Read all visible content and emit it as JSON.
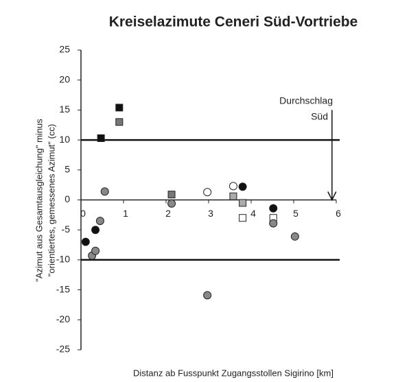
{
  "chart_data": {
    "type": "scatter",
    "title": "Kreiselazimute Ceneri Süd-Vortriebe",
    "x_label": "Distanz ab Fusspunkt Zugangsstollen Sigirino [km]",
    "y_label": [
      "\"Azimut aus Gesamtausgleichung\" minus",
      "\"orientiertes, gemessenes Azimut\" (cc)"
    ],
    "annotation": [
      "Durchschlag",
      "Süd"
    ],
    "arrow": {
      "x": 5.9,
      "y": [
        15,
        0
      ]
    },
    "hlines": [
      10,
      -10
    ],
    "xlim": [
      0,
      6
    ],
    "xticks": [
      0,
      1,
      2,
      3,
      4,
      5,
      6
    ],
    "ylim": [
      -25,
      25
    ],
    "yticks": [
      -25,
      -20,
      -15,
      -10,
      -5,
      0,
      5,
      10,
      15,
      20,
      25
    ],
    "series": [
      {
        "marker": "square",
        "color": "#111111",
        "x": [
          0.47,
          0.9
        ],
        "values": [
          10.3,
          15.4
        ]
      },
      {
        "marker": "square",
        "color": "#777777",
        "x": [
          0.9,
          2.13
        ],
        "values": [
          13.0,
          0.9
        ]
      },
      {
        "marker": "square",
        "color": "#aaaaaa",
        "x": [
          3.58,
          3.8
        ],
        "values": [
          0.6,
          -0.5
        ]
      },
      {
        "marker": "square",
        "color": "#ffffff",
        "x": [
          3.8,
          4.52
        ],
        "values": [
          -3.0,
          -3.0
        ]
      },
      {
        "marker": "circle",
        "color": "#111111",
        "x": [
          3.8,
          4.52,
          0.11,
          0.34
        ],
        "values": [
          2.2,
          -1.4,
          -7.0,
          -5.0
        ]
      },
      {
        "marker": "circle",
        "color": "#888888",
        "x": [
          0.56,
          0.45,
          0.26,
          0.34,
          2.13,
          2.97,
          4.52,
          5.03
        ],
        "values": [
          1.4,
          -3.5,
          -9.3,
          -8.5,
          -0.6,
          -15.9,
          -3.9,
          -6.1
        ]
      },
      {
        "marker": "circle",
        "color": "#ffffff",
        "x": [
          2.97,
          3.58
        ],
        "values": [
          1.3,
          2.3
        ]
      }
    ]
  }
}
